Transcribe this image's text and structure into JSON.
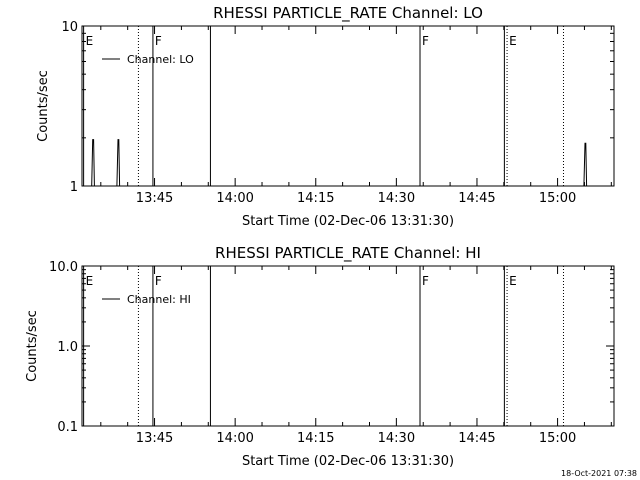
{
  "footer": {
    "timestamp": "18-Oct-2021 07:38"
  },
  "chart_data": [
    {
      "type": "line",
      "title": "RHESSI PARTICLE_RATE Channel: LO",
      "xlabel": "Start Time (02-Dec-06 13:31:30)",
      "ylabel": "Counts/sec",
      "x_unit": "minutes after 13:31:30",
      "xlim": [
        0,
        99
      ],
      "ylim": [
        1,
        10
      ],
      "yscale": "log",
      "x_ticks": [
        {
          "x": 13.5,
          "label": "13:45"
        },
        {
          "x": 28.5,
          "label": "14:00"
        },
        {
          "x": 43.5,
          "label": "14:15"
        },
        {
          "x": 58.5,
          "label": "14:30"
        },
        {
          "x": 73.5,
          "label": "14:45"
        },
        {
          "x": 88.5,
          "label": "15:00"
        }
      ],
      "y_ticks": [
        {
          "y": 1,
          "label": "1"
        },
        {
          "y": 10,
          "label": "10"
        }
      ],
      "legend": {
        "label": "Channel: LO",
        "position": "top-left"
      },
      "series": [
        {
          "name": "Channel: LO",
          "x": [
            0,
            1.8,
            2.0,
            2.15,
            2.3,
            6.5,
            6.7,
            6.85,
            7.0,
            93.4,
            93.6,
            93.75,
            93.9
          ],
          "y": [
            1,
            1,
            1.95,
            1.95,
            1,
            1,
            1.95,
            1.95,
            1,
            1,
            1.85,
            1.85,
            1
          ]
        }
      ],
      "markers": [
        {
          "x": 0.3,
          "style": "solid",
          "label": "E"
        },
        {
          "x": 10.5,
          "style": "dotted",
          "label": ""
        },
        {
          "x": 13.2,
          "style": "solid",
          "label": "F"
        },
        {
          "x": 23.9,
          "style": "solid",
          "label": ""
        },
        {
          "x": 62.9,
          "style": "solid",
          "label": "F"
        },
        {
          "x": 78.6,
          "style": "solid",
          "label": ""
        },
        {
          "x": 79.1,
          "style": "dotted",
          "label": "E"
        },
        {
          "x": 89.6,
          "style": "dotted",
          "label": ""
        }
      ]
    },
    {
      "type": "line",
      "title": "RHESSI PARTICLE_RATE Channel: HI",
      "xlabel": "Start Time (02-Dec-06 13:31:30)",
      "ylabel": "Counts/sec",
      "x_unit": "minutes after 13:31:30",
      "xlim": [
        0,
        99
      ],
      "ylim": [
        0.1,
        10
      ],
      "yscale": "log",
      "x_ticks": [
        {
          "x": 13.5,
          "label": "13:45"
        },
        {
          "x": 28.5,
          "label": "14:00"
        },
        {
          "x": 43.5,
          "label": "14:15"
        },
        {
          "x": 58.5,
          "label": "14:30"
        },
        {
          "x": 73.5,
          "label": "14:45"
        },
        {
          "x": 88.5,
          "label": "15:00"
        }
      ],
      "y_ticks": [
        {
          "y": 0.1,
          "label": "0.1"
        },
        {
          "y": 1,
          "label": "1.0"
        },
        {
          "y": 10,
          "label": "10.0"
        }
      ],
      "legend": {
        "label": "Channel: HI",
        "position": "top-left"
      },
      "series": [
        {
          "name": "Channel: HI",
          "x": [],
          "y": []
        }
      ],
      "markers": [
        {
          "x": 0.3,
          "style": "solid",
          "label": "E"
        },
        {
          "x": 10.5,
          "style": "dotted",
          "label": ""
        },
        {
          "x": 13.2,
          "style": "solid",
          "label": "F"
        },
        {
          "x": 23.9,
          "style": "solid",
          "label": ""
        },
        {
          "x": 62.9,
          "style": "solid",
          "label": "F"
        },
        {
          "x": 78.6,
          "style": "solid",
          "label": ""
        },
        {
          "x": 79.1,
          "style": "dotted",
          "label": "E"
        },
        {
          "x": 89.6,
          "style": "dotted",
          "label": ""
        }
      ]
    }
  ]
}
